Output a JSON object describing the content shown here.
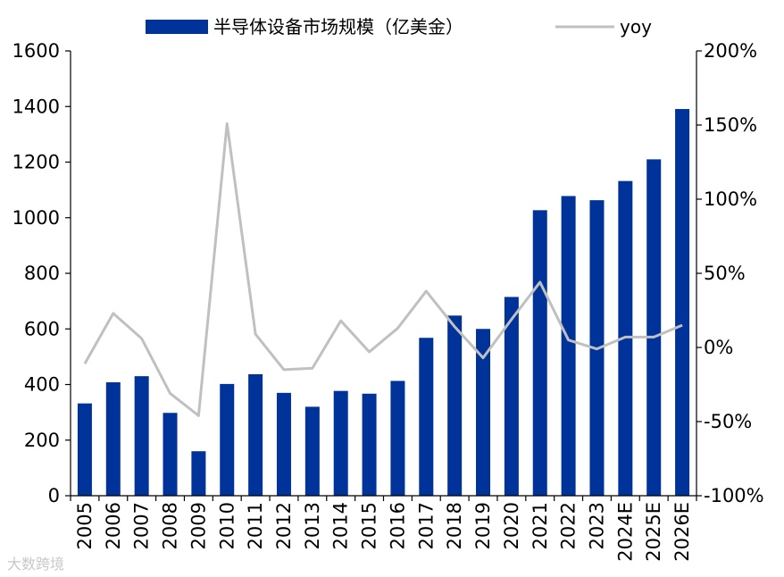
{
  "chart_data": {
    "type": "bar",
    "categories": [
      "2005",
      "2006",
      "2007",
      "2008",
      "2009",
      "2010",
      "2011",
      "2012",
      "2013",
      "2014",
      "2015",
      "2016",
      "2017",
      "2018",
      "2019",
      "2020",
      "2021",
      "2022",
      "2023",
      "2024E",
      "2025E",
      "2026E"
    ],
    "series": [
      {
        "name": "半导体设备市场规模（亿美金）",
        "type": "bar",
        "axis": "left",
        "color": "#003399",
        "values": [
          332,
          408,
          430,
          298,
          160,
          402,
          437,
          370,
          320,
          377,
          367,
          413,
          568,
          648,
          600,
          715,
          1027,
          1078,
          1063,
          1132,
          1210,
          1391
        ]
      },
      {
        "name": "yoy",
        "type": "line",
        "axis": "right",
        "color": "#c0c0c0",
        "values": [
          -11,
          23,
          6,
          -31,
          -46,
          151,
          9,
          -15,
          -14,
          18,
          -3,
          13,
          38,
          14,
          -7,
          19,
          44,
          5,
          -1,
          7,
          7,
          15
        ]
      }
    ],
    "left_axis": {
      "min": 0,
      "max": 1600,
      "ticks": [
        0,
        200,
        400,
        600,
        800,
        1000,
        1200,
        1400,
        1600
      ]
    },
    "right_axis": {
      "min": -100,
      "max": 200,
      "ticks": [
        "-100%",
        "-50%",
        "0%",
        "50%",
        "100%",
        "150%",
        "200%"
      ]
    },
    "legend": {
      "position": "top"
    }
  },
  "watermark": "大数跨境"
}
